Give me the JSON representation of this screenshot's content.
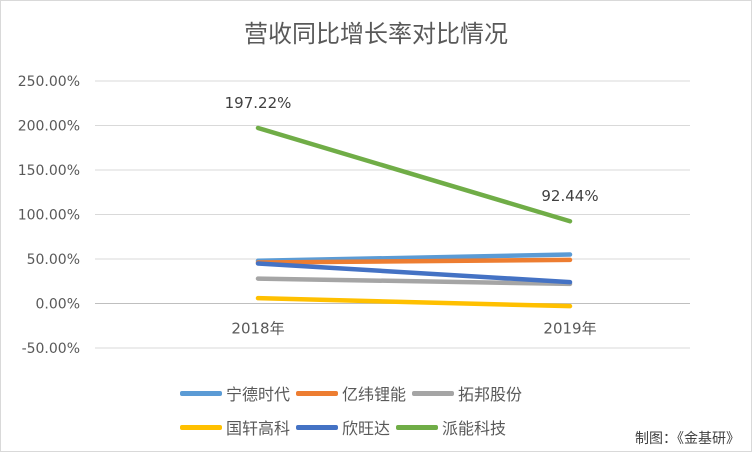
{
  "chart_data": {
    "type": "line",
    "title": "营收同比增长率对比情况",
    "categories": [
      "2018年",
      "2019年"
    ],
    "y_ticks": [
      "250.00%",
      "200.00%",
      "150.00%",
      "100.00%",
      "50.00%",
      "0.00%",
      "-50.00%"
    ],
    "ylim": [
      -50,
      250
    ],
    "grid": true,
    "legend_position": "bottom",
    "series": [
      {
        "name": "宁德时代",
        "values": [
          48,
          55
        ],
        "color": "#5b9bd5"
      },
      {
        "name": "亿纬锂能",
        "values": [
          46,
          49
        ],
        "color": "#ed7d31"
      },
      {
        "name": "拓邦股份",
        "values": [
          28,
          22
        ],
        "color": "#a5a5a5"
      },
      {
        "name": "国轩高科",
        "values": [
          6,
          -3
        ],
        "color": "#ffc000"
      },
      {
        "name": "欣旺达",
        "values": [
          45,
          24
        ],
        "color": "#4472c4"
      },
      {
        "name": "派能科技",
        "values": [
          197.22,
          92.44
        ],
        "color": "#70ad47"
      }
    ],
    "data_labels": [
      "197.22%",
      "92.44%"
    ]
  },
  "credit": "制图：《金基研》"
}
